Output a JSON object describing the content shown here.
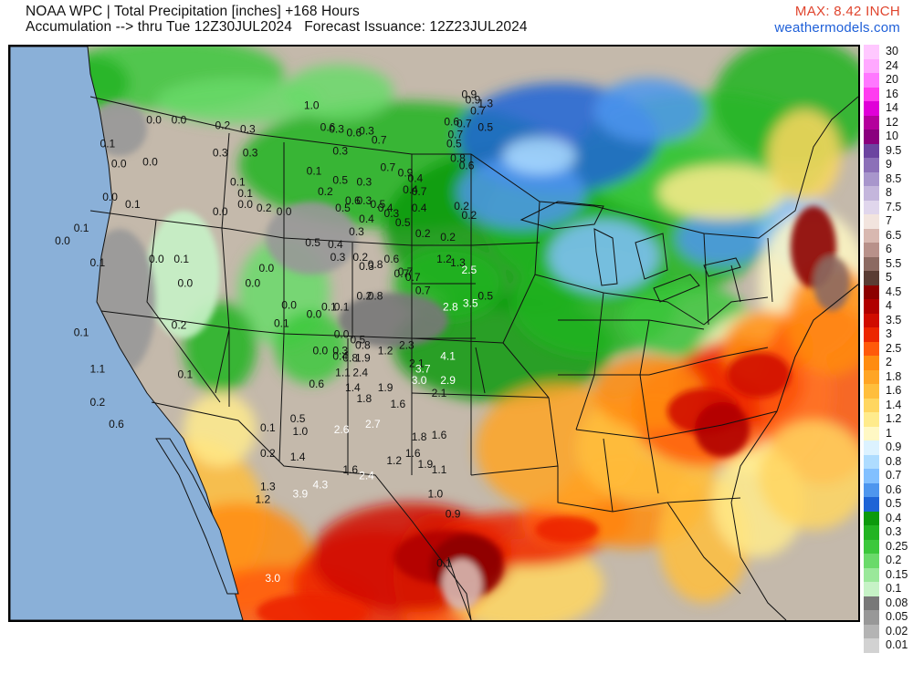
{
  "header": {
    "title": "NOAA WPC | Total Precipitation [inches] +168 Hours",
    "subtitle": "Accumulation --> thru Tue 12Z30JUL2024   Forecast Issuance: 12Z23JUL2024",
    "max": "MAX: 8.42 INCH",
    "credit": "weathermodels.com"
  },
  "colors": {
    "land": "#c4b9ab",
    "water": "#8ab0d8",
    "border": "#111111"
  },
  "legend": [
    {
      "label": "30",
      "color": "#ffc8ff"
    },
    {
      "label": "24",
      "color": "#ffa8ff"
    },
    {
      "label": "20",
      "color": "#ff78ff"
    },
    {
      "label": "16",
      "color": "#ff3cf0"
    },
    {
      "label": "14",
      "color": "#e000d8"
    },
    {
      "label": "12",
      "color": "#b4009c"
    },
    {
      "label": "10",
      "color": "#8a007e"
    },
    {
      "label": "9.5",
      "color": "#6c44a0"
    },
    {
      "label": "9",
      "color": "#8c70b8"
    },
    {
      "label": "8.5",
      "color": "#a896cc"
    },
    {
      "label": "8",
      "color": "#c4b6dc"
    },
    {
      "label": "7.5",
      "color": "#e0d6ec"
    },
    {
      "label": "7",
      "color": "#f2e4de"
    },
    {
      "label": "6.5",
      "color": "#d8b8b0"
    },
    {
      "label": "6",
      "color": "#b8918a"
    },
    {
      "label": "5.5",
      "color": "#8c6a62"
    },
    {
      "label": "5",
      "color": "#5a3c34"
    },
    {
      "label": "4.5",
      "color": "#8c0000"
    },
    {
      "label": "4",
      "color": "#b00000"
    },
    {
      "label": "3.5",
      "color": "#d00c00"
    },
    {
      "label": "3",
      "color": "#ec2600"
    },
    {
      "label": "2.5",
      "color": "#ff5a0a"
    },
    {
      "label": "2",
      "color": "#ff8c10"
    },
    {
      "label": "1.8",
      "color": "#ffa524"
    },
    {
      "label": "1.6",
      "color": "#ffbe3c"
    },
    {
      "label": "1.4",
      "color": "#ffd660"
    },
    {
      "label": "1.2",
      "color": "#ffeb8c"
    },
    {
      "label": "1",
      "color": "#fff8c4"
    },
    {
      "label": "0.9",
      "color": "#dcf2ff"
    },
    {
      "label": "0.8",
      "color": "#aedcff"
    },
    {
      "label": "0.7",
      "color": "#82c0ff"
    },
    {
      "label": "0.6",
      "color": "#4e96ee"
    },
    {
      "label": "0.5",
      "color": "#1e64d6"
    },
    {
      "label": "0.4",
      "color": "#0c9a0c"
    },
    {
      "label": "0.3",
      "color": "#22b422"
    },
    {
      "label": "0.25",
      "color": "#3cc83c"
    },
    {
      "label": "0.2",
      "color": "#6ada6a"
    },
    {
      "label": "0.15",
      "color": "#9ae89a"
    },
    {
      "label": "0.1",
      "color": "#c6f2c6"
    },
    {
      "label": "0.08",
      "color": "#787878"
    },
    {
      "label": "0.05",
      "color": "#989898"
    },
    {
      "label": "0.02",
      "color": "#b4b4b4"
    },
    {
      "label": "0.01",
      "color": "#d2d2d2"
    }
  ],
  "point_values": [
    {
      "v": "0.0",
      "x": -119.5,
      "y": 45.6,
      "c": "k"
    },
    {
      "v": "0.0",
      "x": -117.5,
      "y": 45.6,
      "c": "k"
    },
    {
      "v": "0.1",
      "x": -123.2,
      "y": 44.3,
      "c": "k"
    },
    {
      "v": "0.0",
      "x": -122.3,
      "y": 43.2,
      "c": "k"
    },
    {
      "v": "0.0",
      "x": -119.8,
      "y": 43.3,
      "c": "k"
    },
    {
      "v": "0.0",
      "x": -123.0,
      "y": 41.4,
      "c": "k"
    },
    {
      "v": "0.1",
      "x": -121.2,
      "y": 41.0,
      "c": "k"
    },
    {
      "v": "0.1",
      "x": -125.3,
      "y": 39.7,
      "c": "k"
    },
    {
      "v": "0.0",
      "x": -126.8,
      "y": 39.0,
      "c": "k"
    },
    {
      "v": "0.1",
      "x": -124.0,
      "y": 37.8,
      "c": "k"
    },
    {
      "v": "0.0",
      "x": -119.3,
      "y": 38.0,
      "c": "k"
    },
    {
      "v": "0.1",
      "x": -117.3,
      "y": 38.0,
      "c": "k"
    },
    {
      "v": "0.0",
      "x": -117.0,
      "y": 36.7,
      "c": "k"
    },
    {
      "v": "0.0",
      "x": -112.2,
      "y": 41.0,
      "c": "k"
    },
    {
      "v": "0.0",
      "x": -109.1,
      "y": 40.6,
      "c": "k"
    },
    {
      "v": "0.0",
      "x": -111.6,
      "y": 36.7,
      "c": "k"
    },
    {
      "v": "0.1",
      "x": -125.3,
      "y": 34.0,
      "c": "k"
    },
    {
      "v": "1.1",
      "x": -124.0,
      "y": 32.0,
      "c": "k"
    },
    {
      "v": "0.2",
      "x": -117.5,
      "y": 34.4,
      "c": "k"
    },
    {
      "v": "0.1",
      "x": -117.0,
      "y": 31.7,
      "c": "k"
    },
    {
      "v": "0.2",
      "x": -124.0,
      "y": 30.2,
      "c": "k"
    },
    {
      "v": "0.6",
      "x": -122.5,
      "y": 29.0,
      "c": "k"
    },
    {
      "v": "0.2",
      "x": -114.0,
      "y": 45.3,
      "c": "k"
    },
    {
      "v": "0.3",
      "x": -112.0,
      "y": 45.1,
      "c": "k"
    },
    {
      "v": "0.3",
      "x": -114.2,
      "y": 43.8,
      "c": "k"
    },
    {
      "v": "0.3",
      "x": -111.8,
      "y": 43.8,
      "c": "k"
    },
    {
      "v": "0.1",
      "x": -112.8,
      "y": 42.2,
      "c": "k"
    },
    {
      "v": "0.1",
      "x": -112.2,
      "y": 41.6,
      "c": "k"
    },
    {
      "v": "0.0",
      "x": -114.2,
      "y": 40.6,
      "c": "k"
    },
    {
      "v": "0.2",
      "x": -110.7,
      "y": 40.8,
      "c": "k"
    },
    {
      "v": "0.0",
      "x": -110.5,
      "y": 37.5,
      "c": "k"
    },
    {
      "v": "0.0",
      "x": -108.7,
      "y": 35.5,
      "c": "k"
    },
    {
      "v": "0.1",
      "x": -109.3,
      "y": 34.5,
      "c": "k"
    },
    {
      "v": "0.0",
      "x": -106.7,
      "y": 35.0,
      "c": "k"
    },
    {
      "v": "0.0",
      "x": -106.2,
      "y": 33.0,
      "c": "k"
    },
    {
      "v": "1.0",
      "x": -106.9,
      "y": 46.4,
      "c": "k"
    },
    {
      "v": "0.6",
      "x": -105.6,
      "y": 45.2,
      "c": "k"
    },
    {
      "v": "0.3",
      "x": -104.9,
      "y": 45.1,
      "c": "k"
    },
    {
      "v": "0.3",
      "x": -104.6,
      "y": 43.9,
      "c": "k"
    },
    {
      "v": "0.6",
      "x": -103.5,
      "y": 44.9,
      "c": "k"
    },
    {
      "v": "0.3",
      "x": -102.5,
      "y": 45.0,
      "c": "k"
    },
    {
      "v": "0.7",
      "x": -101.5,
      "y": 44.5,
      "c": "k"
    },
    {
      "v": "0.1",
      "x": -106.7,
      "y": 42.8,
      "c": "k"
    },
    {
      "v": "0.2",
      "x": -105.8,
      "y": 41.7,
      "c": "k"
    },
    {
      "v": "0.5",
      "x": -104.6,
      "y": 42.3,
      "c": "k"
    },
    {
      "v": "0.6",
      "x": -103.6,
      "y": 41.2,
      "c": "k"
    },
    {
      "v": "0.5",
      "x": -104.4,
      "y": 40.8,
      "c": "k"
    },
    {
      "v": "0.3",
      "x": -102.7,
      "y": 42.2,
      "c": "k"
    },
    {
      "v": "0.3",
      "x": -102.7,
      "y": 41.2,
      "c": "k"
    },
    {
      "v": "0.3",
      "x": -103.3,
      "y": 39.5,
      "c": "k"
    },
    {
      "v": "0.4",
      "x": -102.5,
      "y": 40.2,
      "c": "k"
    },
    {
      "v": "0.5",
      "x": -101.6,
      "y": 41.0,
      "c": "k"
    },
    {
      "v": "0.5",
      "x": -106.8,
      "y": 38.9,
      "c": "k"
    },
    {
      "v": "0.3",
      "x": -104.8,
      "y": 38.1,
      "c": "k"
    },
    {
      "v": "0.4",
      "x": -105.0,
      "y": 38.8,
      "c": "k"
    },
    {
      "v": "0.2",
      "x": -103.0,
      "y": 38.1,
      "c": "k"
    },
    {
      "v": "0.3",
      "x": -102.5,
      "y": 37.6,
      "c": "k"
    },
    {
      "v": "0.8",
      "x": -101.8,
      "y": 37.7,
      "c": "k"
    },
    {
      "v": "0.6",
      "x": -100.5,
      "y": 38.0,
      "c": "k"
    },
    {
      "v": "0.7",
      "x": -99.7,
      "y": 37.2,
      "c": "k"
    },
    {
      "v": "0.7",
      "x": -98.8,
      "y": 37.0,
      "c": "k"
    },
    {
      "v": "0.2",
      "x": -102.7,
      "y": 36.0,
      "c": "k"
    },
    {
      "v": "0.8",
      "x": -101.8,
      "y": 36.0,
      "c": "k"
    },
    {
      "v": "0.1",
      "x": -105.5,
      "y": 35.4,
      "c": "k"
    },
    {
      "v": "0.1",
      "x": -104.5,
      "y": 35.4,
      "c": "k"
    },
    {
      "v": "0.0",
      "x": -104.5,
      "y": 33.9,
      "c": "k"
    },
    {
      "v": "0.5",
      "x": -103.2,
      "y": 33.6,
      "c": "k"
    },
    {
      "v": "0.3",
      "x": -104.6,
      "y": 33.0,
      "c": "k"
    },
    {
      "v": "0.4",
      "x": -104.6,
      "y": 32.7,
      "c": "k"
    },
    {
      "v": "0.8",
      "x": -103.8,
      "y": 32.6,
      "c": "k"
    },
    {
      "v": "0.8",
      "x": -102.8,
      "y": 33.3,
      "c": "k"
    },
    {
      "v": "1.9",
      "x": -102.8,
      "y": 32.6,
      "c": "k"
    },
    {
      "v": "1.2",
      "x": -101.0,
      "y": 33.0,
      "c": "k"
    },
    {
      "v": "1.1",
      "x": -104.4,
      "y": 31.8,
      "c": "k"
    },
    {
      "v": "2.4",
      "x": -103.0,
      "y": 31.8,
      "c": "k"
    },
    {
      "v": "1.4",
      "x": -103.6,
      "y": 31.0,
      "c": "k"
    },
    {
      "v": "1.8",
      "x": -102.7,
      "y": 30.4,
      "c": "k"
    },
    {
      "v": "1.9",
      "x": -101.0,
      "y": 31.0,
      "c": "k"
    },
    {
      "v": "1.6",
      "x": -100.0,
      "y": 30.1,
      "c": "k"
    },
    {
      "v": "2.7",
      "x": -102.0,
      "y": 29.0,
      "c": "w"
    },
    {
      "v": "2.6",
      "x": -104.5,
      "y": 28.7,
      "c": "w"
    },
    {
      "v": "0.6",
      "x": -106.5,
      "y": 31.2,
      "c": "k"
    },
    {
      "v": "0.5",
      "x": -108.0,
      "y": 29.3,
      "c": "k"
    },
    {
      "v": "1.0",
      "x": -107.8,
      "y": 28.6,
      "c": "k"
    },
    {
      "v": "0.1",
      "x": -110.4,
      "y": 28.8,
      "c": "k"
    },
    {
      "v": "0.2",
      "x": -110.4,
      "y": 27.4,
      "c": "k"
    },
    {
      "v": "1.4",
      "x": -108.0,
      "y": 27.2,
      "c": "k"
    },
    {
      "v": "1.3",
      "x": -110.4,
      "y": 25.6,
      "c": "k"
    },
    {
      "v": "1.2",
      "x": -110.8,
      "y": 24.9,
      "c": "k"
    },
    {
      "v": "3.9",
      "x": -107.8,
      "y": 25.2,
      "c": "w"
    },
    {
      "v": "4.3",
      "x": -106.2,
      "y": 25.7,
      "c": "w"
    },
    {
      "v": "1.6",
      "x": -103.8,
      "y": 26.5,
      "c": "k"
    },
    {
      "v": "2.4",
      "x": -102.5,
      "y": 26.2,
      "c": "w"
    },
    {
      "v": "1.2",
      "x": -100.3,
      "y": 27.0,
      "c": "k"
    },
    {
      "v": "3.0",
      "x": -110.0,
      "y": 20.6,
      "c": "w"
    },
    {
      "v": "1.8",
      "x": -98.3,
      "y": 28.3,
      "c": "k"
    },
    {
      "v": "1.6",
      "x": -96.7,
      "y": 28.4,
      "c": "k"
    },
    {
      "v": "1.6",
      "x": -98.8,
      "y": 27.4,
      "c": "k"
    },
    {
      "v": "1.9",
      "x": -97.8,
      "y": 26.8,
      "c": "k"
    },
    {
      "v": "1.1",
      "x": -96.7,
      "y": 26.5,
      "c": "k"
    },
    {
      "v": "1.0",
      "x": -97.0,
      "y": 25.2,
      "c": "k"
    },
    {
      "v": "0.9",
      "x": -95.6,
      "y": 24.1,
      "c": "k"
    },
    {
      "v": "0.1",
      "x": -96.3,
      "y": 21.4,
      "c": "k"
    },
    {
      "v": "2.1",
      "x": -96.7,
      "y": 30.7,
      "c": "k"
    },
    {
      "v": "2.3",
      "x": -99.3,
      "y": 33.3,
      "c": "k"
    },
    {
      "v": "2.1",
      "x": -98.5,
      "y": 32.3,
      "c": "k"
    },
    {
      "v": "3.7",
      "x": -98.0,
      "y": 32.0,
      "c": "w"
    },
    {
      "v": "4.1",
      "x": -96.0,
      "y": 32.7,
      "c": "w"
    },
    {
      "v": "3.0",
      "x": -98.3,
      "y": 31.4,
      "c": "w"
    },
    {
      "v": "2.9",
      "x": -96.0,
      "y": 31.4,
      "c": "w"
    },
    {
      "v": "2.8",
      "x": -95.8,
      "y": 35.4,
      "c": "w"
    },
    {
      "v": "3.5",
      "x": -94.2,
      "y": 35.6,
      "c": "w"
    },
    {
      "v": "2.5",
      "x": -94.3,
      "y": 37.4,
      "c": "w"
    },
    {
      "v": "0.5",
      "x": -93.0,
      "y": 36.0,
      "c": "k"
    },
    {
      "v": "1.2",
      "x": -96.3,
      "y": 38.0,
      "c": "k"
    },
    {
      "v": "1.3",
      "x": -95.2,
      "y": 37.8,
      "c": "k"
    },
    {
      "v": "0.7",
      "x": -99.4,
      "y": 37.3,
      "c": "k"
    },
    {
      "v": "0.7",
      "x": -98.0,
      "y": 36.3,
      "c": "k"
    },
    {
      "v": "0.2",
      "x": -98.0,
      "y": 39.4,
      "c": "k"
    },
    {
      "v": "0.2",
      "x": -96.0,
      "y": 39.2,
      "c": "k"
    },
    {
      "v": "0.2",
      "x": -94.3,
      "y": 40.4,
      "c": "k"
    },
    {
      "v": "0.4",
      "x": -98.3,
      "y": 40.8,
      "c": "k"
    },
    {
      "v": "0.5",
      "x": -99.6,
      "y": 40.0,
      "c": "k"
    },
    {
      "v": "0.3",
      "x": -100.5,
      "y": 40.5,
      "c": "k"
    },
    {
      "v": "0.4",
      "x": -101.0,
      "y": 40.8,
      "c": "k"
    },
    {
      "v": "0.7",
      "x": -100.8,
      "y": 43.0,
      "c": "k"
    },
    {
      "v": "0.9",
      "x": -99.4,
      "y": 42.7,
      "c": "k"
    },
    {
      "v": "0.4",
      "x": -98.6,
      "y": 42.4,
      "c": "k"
    },
    {
      "v": "0.7",
      "x": -98.3,
      "y": 41.7,
      "c": "k"
    },
    {
      "v": "0.4",
      "x": -99.0,
      "y": 41.8,
      "c": "k"
    },
    {
      "v": "0.2",
      "x": -94.9,
      "y": 40.9,
      "c": "k"
    },
    {
      "v": "0.7",
      "x": -95.4,
      "y": 44.8,
      "c": "k"
    },
    {
      "v": "0.6",
      "x": -95.7,
      "y": 45.5,
      "c": "k"
    },
    {
      "v": "0.7",
      "x": -94.7,
      "y": 45.4,
      "c": "k"
    },
    {
      "v": "0.5",
      "x": -95.5,
      "y": 44.3,
      "c": "k"
    },
    {
      "v": "0.8",
      "x": -95.2,
      "y": 43.5,
      "c": "k"
    },
    {
      "v": "0.6",
      "x": -94.5,
      "y": 43.1,
      "c": "k"
    },
    {
      "v": "0.9",
      "x": -94.3,
      "y": 47.0,
      "c": "k"
    },
    {
      "v": "0.9",
      "x": -94.0,
      "y": 46.7,
      "c": "k"
    },
    {
      "v": "0.7",
      "x": -93.6,
      "y": 46.1,
      "c": "k"
    },
    {
      "v": "1.3",
      "x": -93.0,
      "y": 46.5,
      "c": "k"
    },
    {
      "v": "0.5",
      "x": -93.0,
      "y": 45.2,
      "c": "k"
    }
  ]
}
